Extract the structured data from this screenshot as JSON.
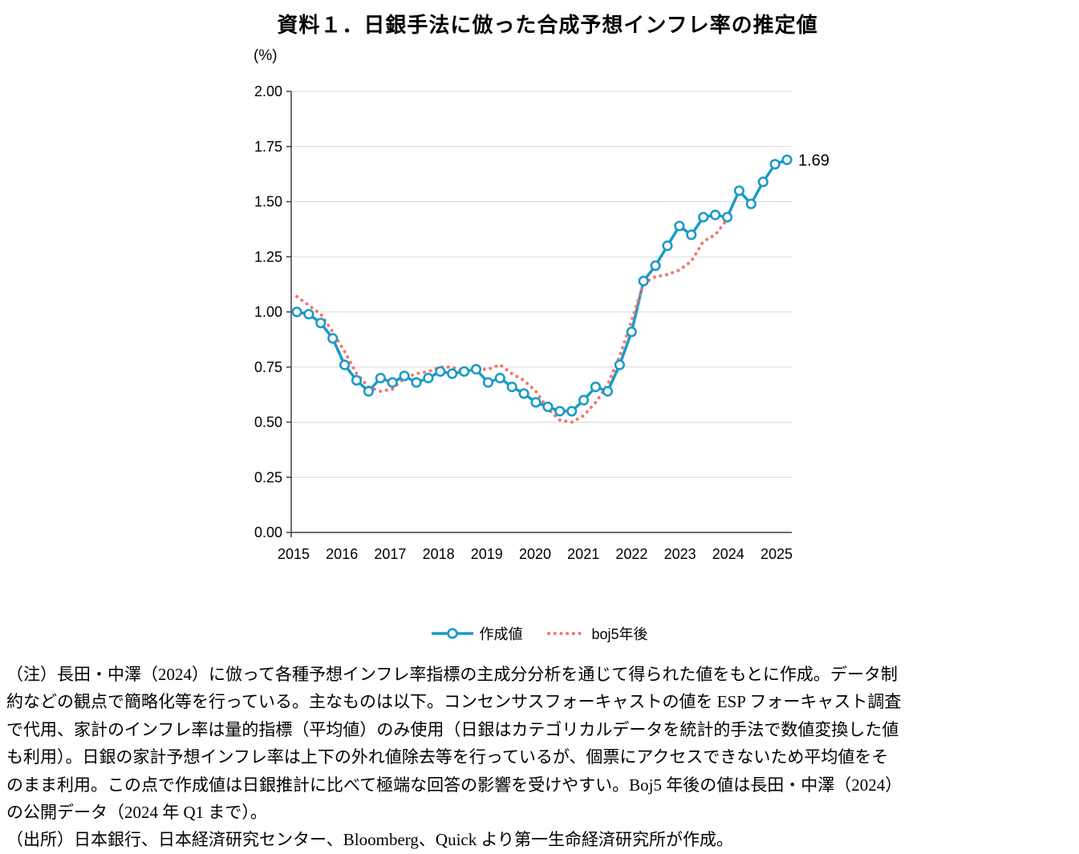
{
  "title": "資料１．日銀手法に倣った合成予想インフレ率の推定値",
  "colors": {
    "blue": "#1B9AC7",
    "red": "#F3766D",
    "grid": "#D9D9D9",
    "axis": "#404040"
  },
  "chart_data": {
    "type": "line",
    "title": "資料１．日銀手法に倣った合成予想インフレ率の推定値",
    "unit_label": "(%)",
    "xlabel": "",
    "ylabel": "(%)",
    "ylim": [
      0.0,
      2.0
    ],
    "ytick_step": 0.25,
    "grid": true,
    "legend_position": "bottom",
    "x_frequency": "quarterly",
    "x_start": "2015Q1",
    "x_tick_labels": [
      "2015",
      "2016",
      "2017",
      "2018",
      "2019",
      "2020",
      "2021",
      "2022",
      "2023",
      "2024",
      "2025"
    ],
    "y_tick_labels": [
      "0.00",
      "0.25",
      "0.50",
      "0.75",
      "1.00",
      "1.25",
      "1.50",
      "1.75",
      "2.00"
    ],
    "end_label": "1.69",
    "series": [
      {
        "name": "作成値",
        "color": "#1B9AC7",
        "style": "solid-line-circle-markers",
        "start": "2015Q1",
        "end": "2025Q2",
        "values": [
          1.0,
          0.99,
          0.95,
          0.88,
          0.76,
          0.69,
          0.64,
          0.7,
          0.68,
          0.71,
          0.68,
          0.7,
          0.73,
          0.72,
          0.73,
          0.74,
          0.68,
          0.7,
          0.66,
          0.63,
          0.59,
          0.57,
          0.55,
          0.55,
          0.6,
          0.66,
          0.64,
          0.76,
          0.91,
          1.14,
          1.21,
          1.3,
          1.39,
          1.35,
          1.43,
          1.44,
          1.43,
          1.55,
          1.49,
          1.59,
          1.67,
          1.69
        ]
      },
      {
        "name": "boj5年後",
        "color": "#F3766D",
        "style": "dotted-line",
        "start": "2015Q1",
        "end": "2024Q1",
        "values": [
          1.07,
          1.03,
          0.99,
          0.91,
          0.82,
          0.72,
          0.66,
          0.64,
          0.65,
          0.7,
          0.72,
          0.73,
          0.75,
          0.75,
          0.73,
          0.74,
          0.74,
          0.76,
          0.72,
          0.69,
          0.64,
          0.56,
          0.51,
          0.5,
          0.53,
          0.59,
          0.67,
          0.8,
          0.96,
          1.13,
          1.16,
          1.17,
          1.19,
          1.23,
          1.32,
          1.35,
          1.42
        ]
      }
    ]
  },
  "notes": [
    "（注）長田・中澤（2024）に倣って各種予想インフレ率指標の主成分分析を通じて得られた値をもとに作成。データ制",
    "約などの観点で簡略化等を行っている。主なものは以下。コンセンサスフォーキャストの値を ESP フォーキャスト調査",
    "で代用、家計のインフレ率は量的指標（平均値）のみ使用（日銀はカテゴリカルデータを統計的手法で数値変換した値",
    "も利用）。日銀の家計予想インフレ率は上下の外れ値除去等を行っているが、個票にアクセスできないため平均値をそ",
    "のまま利用。この点で作成値は日銀推計に比べて極端な回答の影響を受けやすい。Boj5 年後の値は長田・中澤（2024）",
    "の公開データ（2024 年 Q1 まで）。",
    "（出所）日本銀行、日本経済研究センター、Bloomberg、Quick より第一生命経済研究所が作成。"
  ]
}
